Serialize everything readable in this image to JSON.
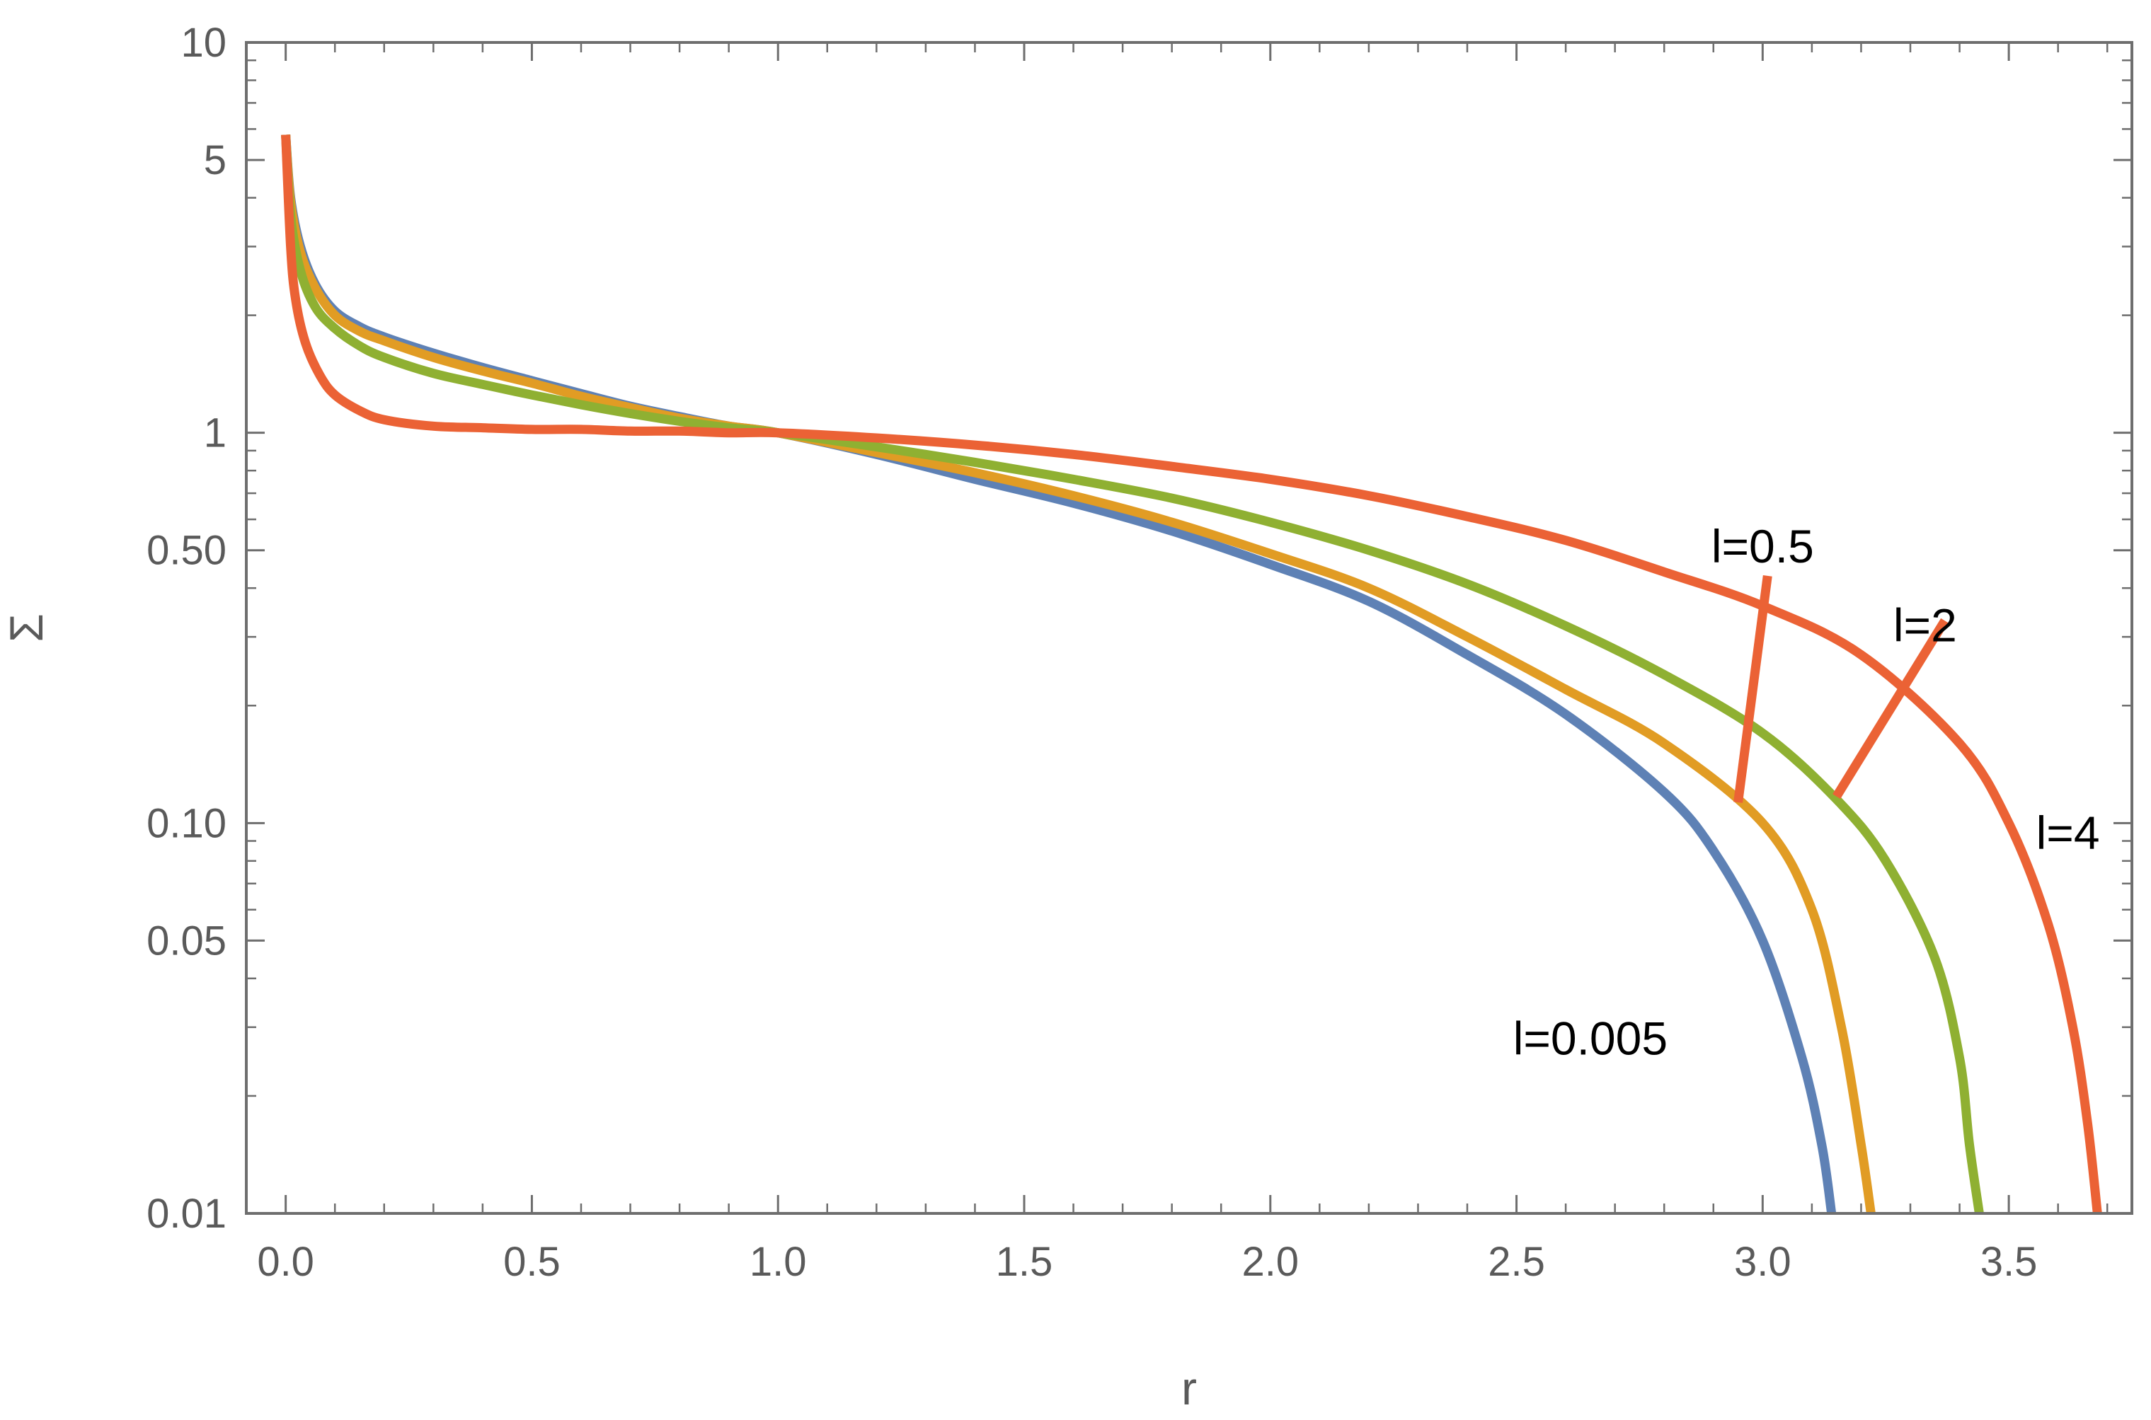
{
  "chart_data": {
    "type": "line",
    "title": "",
    "xlabel": "r",
    "ylabel": "Σ",
    "xlim": [
      -0.08,
      3.75
    ],
    "ylim": [
      0.01,
      10
    ],
    "yscale": "log",
    "grid": false,
    "x_ticks": [
      {
        "value": 0.0,
        "label": "0.0"
      },
      {
        "value": 0.5,
        "label": "0.5"
      },
      {
        "value": 1.0,
        "label": "1.0"
      },
      {
        "value": 1.5,
        "label": "1.5"
      },
      {
        "value": 2.0,
        "label": "2.0"
      },
      {
        "value": 2.5,
        "label": "2.5"
      },
      {
        "value": 3.0,
        "label": "3.0"
      },
      {
        "value": 3.5,
        "label": "3.5"
      }
    ],
    "y_ticks": [
      {
        "value": 10,
        "label": "10"
      },
      {
        "value": 5,
        "label": "5"
      },
      {
        "value": 1,
        "label": "1"
      },
      {
        "value": 0.5,
        "label": "0.50"
      },
      {
        "value": 0.1,
        "label": "0.10"
      },
      {
        "value": 0.05,
        "label": "0.05"
      },
      {
        "value": 0.01,
        "label": "0.01"
      }
    ],
    "series": [
      {
        "name": "l=0.005",
        "color": "#5e81b5",
        "points": [
          [
            0.0,
            5.8
          ],
          [
            0.01,
            4.0
          ],
          [
            0.03,
            3.0
          ],
          [
            0.06,
            2.4
          ],
          [
            0.1,
            2.05
          ],
          [
            0.15,
            1.87
          ],
          [
            0.2,
            1.76
          ],
          [
            0.3,
            1.6
          ],
          [
            0.4,
            1.47
          ],
          [
            0.5,
            1.36
          ],
          [
            0.6,
            1.26
          ],
          [
            0.7,
            1.17
          ],
          [
            0.8,
            1.1
          ],
          [
            0.9,
            1.04
          ],
          [
            1.0,
            1.0
          ],
          [
            1.2,
            0.88
          ],
          [
            1.4,
            0.76
          ],
          [
            1.6,
            0.66
          ],
          [
            1.8,
            0.56
          ],
          [
            2.0,
            0.46
          ],
          [
            2.2,
            0.37
          ],
          [
            2.4,
            0.27
          ],
          [
            2.6,
            0.19
          ],
          [
            2.8,
            0.12
          ],
          [
            2.9,
            0.085
          ],
          [
            3.0,
            0.05
          ],
          [
            3.08,
            0.025
          ],
          [
            3.12,
            0.015
          ],
          [
            3.14,
            0.01
          ]
        ]
      },
      {
        "name": "l=0.5",
        "color": "#e19c24",
        "points": [
          [
            0.0,
            5.8
          ],
          [
            0.01,
            3.9
          ],
          [
            0.03,
            2.9
          ],
          [
            0.06,
            2.35
          ],
          [
            0.1,
            2.0
          ],
          [
            0.15,
            1.82
          ],
          [
            0.2,
            1.72
          ],
          [
            0.3,
            1.56
          ],
          [
            0.4,
            1.44
          ],
          [
            0.5,
            1.34
          ],
          [
            0.6,
            1.24
          ],
          [
            0.7,
            1.16
          ],
          [
            0.8,
            1.09
          ],
          [
            0.9,
            1.04
          ],
          [
            1.0,
            1.0
          ],
          [
            1.2,
            0.89
          ],
          [
            1.4,
            0.79
          ],
          [
            1.6,
            0.69
          ],
          [
            1.8,
            0.59
          ],
          [
            2.0,
            0.49
          ],
          [
            2.2,
            0.4
          ],
          [
            2.4,
            0.3
          ],
          [
            2.6,
            0.22
          ],
          [
            2.8,
            0.16
          ],
          [
            3.0,
            0.1
          ],
          [
            3.1,
            0.06
          ],
          [
            3.16,
            0.03
          ],
          [
            3.2,
            0.015
          ],
          [
            3.22,
            0.01
          ]
        ]
      },
      {
        "name": "l=2",
        "color": "#8fb032",
        "points": [
          [
            0.0,
            5.8
          ],
          [
            0.01,
            3.6
          ],
          [
            0.03,
            2.6
          ],
          [
            0.06,
            2.1
          ],
          [
            0.1,
            1.85
          ],
          [
            0.15,
            1.67
          ],
          [
            0.2,
            1.56
          ],
          [
            0.3,
            1.42
          ],
          [
            0.4,
            1.33
          ],
          [
            0.5,
            1.25
          ],
          [
            0.6,
            1.18
          ],
          [
            0.7,
            1.12
          ],
          [
            0.8,
            1.07
          ],
          [
            0.9,
            1.03
          ],
          [
            1.0,
            1.0
          ],
          [
            1.2,
            0.92
          ],
          [
            1.4,
            0.84
          ],
          [
            1.6,
            0.76
          ],
          [
            1.8,
            0.68
          ],
          [
            2.0,
            0.59
          ],
          [
            2.2,
            0.5
          ],
          [
            2.4,
            0.41
          ],
          [
            2.6,
            0.32
          ],
          [
            2.8,
            0.24
          ],
          [
            3.0,
            0.17
          ],
          [
            3.15,
            0.115
          ],
          [
            3.25,
            0.08
          ],
          [
            3.35,
            0.045
          ],
          [
            3.4,
            0.025
          ],
          [
            3.42,
            0.015
          ],
          [
            3.44,
            0.01
          ]
        ]
      },
      {
        "name": "l=4",
        "color": "#eb6235",
        "points": [
          [
            0.0,
            5.8
          ],
          [
            0.01,
            3.0
          ],
          [
            0.02,
            2.2
          ],
          [
            0.04,
            1.7
          ],
          [
            0.07,
            1.4
          ],
          [
            0.1,
            1.25
          ],
          [
            0.15,
            1.14
          ],
          [
            0.2,
            1.08
          ],
          [
            0.3,
            1.04
          ],
          [
            0.4,
            1.03
          ],
          [
            0.5,
            1.02
          ],
          [
            0.6,
            1.02
          ],
          [
            0.7,
            1.01
          ],
          [
            0.8,
            1.01
          ],
          [
            0.9,
            1.0
          ],
          [
            1.0,
            1.0
          ],
          [
            1.2,
            0.97
          ],
          [
            1.4,
            0.93
          ],
          [
            1.6,
            0.88
          ],
          [
            1.8,
            0.82
          ],
          [
            2.0,
            0.76
          ],
          [
            2.2,
            0.69
          ],
          [
            2.4,
            0.61
          ],
          [
            2.6,
            0.53
          ],
          [
            2.8,
            0.44
          ],
          [
            3.0,
            0.36
          ],
          [
            3.2,
            0.27
          ],
          [
            3.4,
            0.16
          ],
          [
            3.5,
            0.1
          ],
          [
            3.58,
            0.055
          ],
          [
            3.63,
            0.03
          ],
          [
            3.66,
            0.017
          ],
          [
            3.68,
            0.01
          ]
        ]
      }
    ],
    "annotations": [
      {
        "text": "l=0.005",
        "x": 2.65,
        "y": 0.028
      },
      {
        "text": "l=0.5",
        "x": 3.0,
        "y": 0.51
      },
      {
        "text": "l=2",
        "x": 3.33,
        "y": 0.32
      },
      {
        "text": "l=4",
        "x": 3.62,
        "y": 0.094
      }
    ],
    "leader_lines": [
      {
        "label": "l=0.5",
        "color": "#eb6235",
        "from": [
          2.95,
          0.113
        ],
        "to": [
          3.01,
          0.43
        ]
      },
      {
        "label": "l=2",
        "color": "#eb6235",
        "from": [
          3.15,
          0.117
        ],
        "to": [
          3.37,
          0.33
        ]
      }
    ]
  }
}
